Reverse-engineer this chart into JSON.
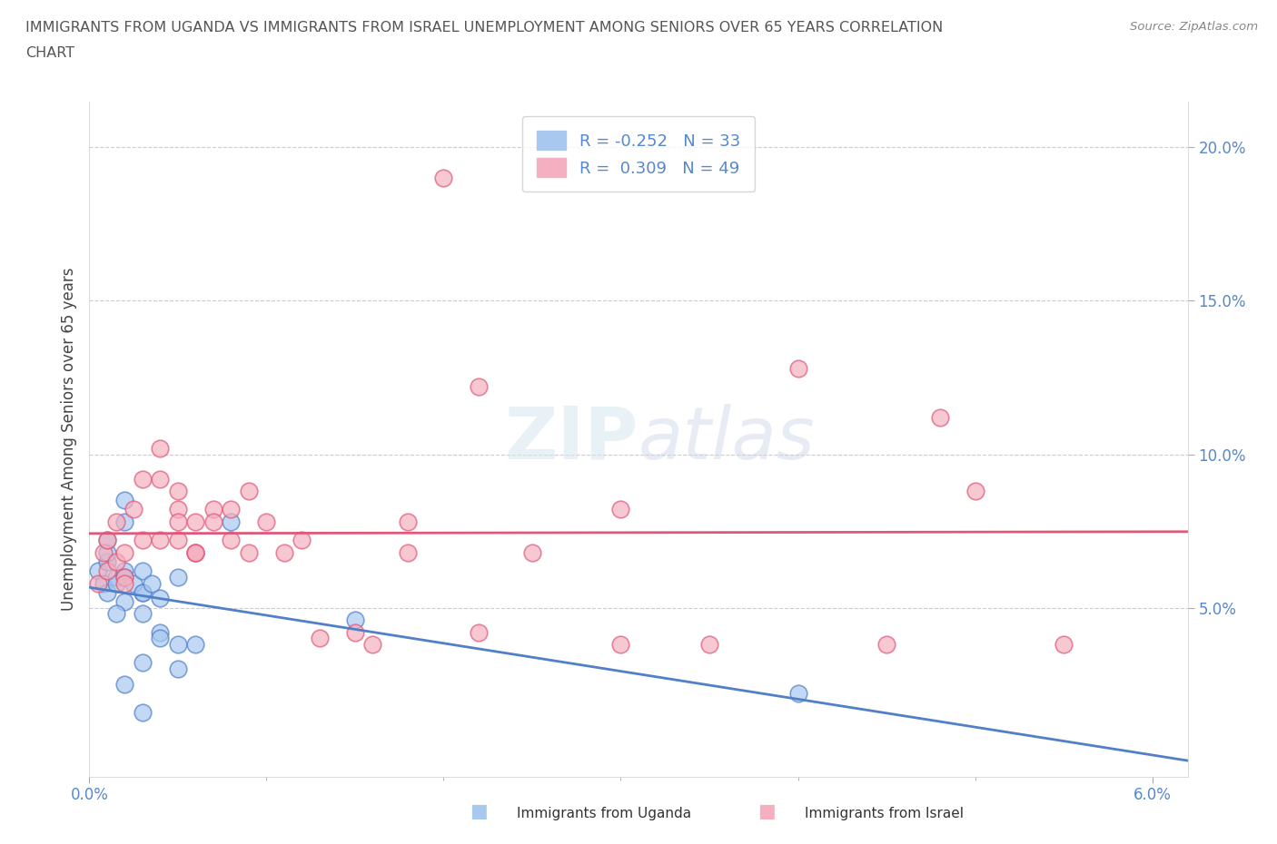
{
  "title_line1": "IMMIGRANTS FROM UGANDA VS IMMIGRANTS FROM ISRAEL UNEMPLOYMENT AMONG SENIORS OVER 65 YEARS CORRELATION",
  "title_line2": "CHART",
  "source": "Source: ZipAtlas.com",
  "ylabel": "Unemployment Among Seniors over 65 years",
  "xlim": [
    0.0,
    0.062
  ],
  "ylim": [
    -0.005,
    0.215
  ],
  "yticks": [
    0.05,
    0.1,
    0.15,
    0.2
  ],
  "ytick_labels": [
    "5.0%",
    "10.0%",
    "15.0%",
    "20.0%"
  ],
  "xtick_labels": [
    "0.0%",
    "6.0%"
  ],
  "uganda_color": "#a8c8f0",
  "israel_color": "#f4b0c0",
  "uganda_line_color": "#5080c8",
  "israel_line_color": "#e05878",
  "uganda_R": -0.252,
  "uganda_N": 33,
  "israel_R": 0.309,
  "israel_N": 49,
  "legend_label_uganda": "Immigrants from Uganda",
  "legend_label_israel": "Immigrants from Israel",
  "watermark_part1": "ZIP",
  "watermark_part2": "atlas",
  "background_color": "#ffffff",
  "grid_color": "#cccccc",
  "title_color": "#555555",
  "tick_color": "#5588cc",
  "uganda_x": [
    0.0005,
    0.001,
    0.0008,
    0.001,
    0.0015,
    0.001,
    0.002,
    0.0015,
    0.001,
    0.002,
    0.003,
    0.002,
    0.0015,
    0.0025,
    0.003,
    0.003,
    0.002,
    0.004,
    0.003,
    0.004,
    0.002,
    0.005,
    0.004,
    0.0035,
    0.005,
    0.008,
    0.006,
    0.003,
    0.005,
    0.015,
    0.04,
    0.002,
    0.003
  ],
  "uganda_y": [
    0.062,
    0.065,
    0.058,
    0.055,
    0.06,
    0.068,
    0.062,
    0.058,
    0.072,
    0.06,
    0.055,
    0.052,
    0.048,
    0.058,
    0.062,
    0.055,
    0.085,
    0.053,
    0.048,
    0.042,
    0.078,
    0.038,
    0.04,
    0.058,
    0.06,
    0.078,
    0.038,
    0.032,
    0.03,
    0.046,
    0.022,
    0.025,
    0.016
  ],
  "israel_x": [
    0.0005,
    0.001,
    0.0008,
    0.001,
    0.0015,
    0.002,
    0.0015,
    0.002,
    0.003,
    0.0025,
    0.003,
    0.002,
    0.004,
    0.004,
    0.005,
    0.005,
    0.006,
    0.004,
    0.005,
    0.006,
    0.007,
    0.005,
    0.006,
    0.007,
    0.008,
    0.006,
    0.009,
    0.008,
    0.01,
    0.009,
    0.012,
    0.011,
    0.015,
    0.013,
    0.018,
    0.016,
    0.02,
    0.022,
    0.018,
    0.025,
    0.022,
    0.03,
    0.035,
    0.03,
    0.04,
    0.045,
    0.048,
    0.05,
    0.055
  ],
  "israel_y": [
    0.058,
    0.062,
    0.068,
    0.072,
    0.065,
    0.06,
    0.078,
    0.068,
    0.072,
    0.082,
    0.092,
    0.058,
    0.102,
    0.092,
    0.088,
    0.082,
    0.068,
    0.072,
    0.078,
    0.068,
    0.082,
    0.072,
    0.068,
    0.078,
    0.072,
    0.078,
    0.068,
    0.082,
    0.078,
    0.088,
    0.072,
    0.068,
    0.042,
    0.04,
    0.068,
    0.038,
    0.19,
    0.122,
    0.078,
    0.068,
    0.042,
    0.082,
    0.038,
    0.038,
    0.128,
    0.038,
    0.112,
    0.088,
    0.038
  ]
}
